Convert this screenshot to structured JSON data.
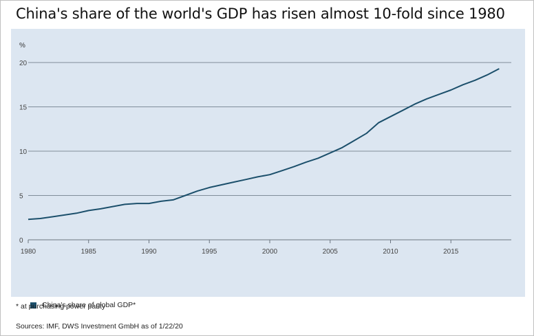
{
  "title": "China's share of the world's GDP has risen almost 10-fold since 1980",
  "footnote": "* at purchasing power parity",
  "sources": "Sources: IMF, DWS Investment GmbH as of 1/22/20",
  "colors": {
    "line": "#1b4f6b",
    "panel": "#dce6f1",
    "grid": "#7f8c99"
  },
  "chart_data": {
    "type": "line",
    "title": "China's share of the world's GDP has risen almost 10-fold since 1980",
    "ylabel": "%",
    "xlabel": "",
    "ylim": [
      0,
      20
    ],
    "yticks": [
      0,
      5,
      10,
      15,
      20
    ],
    "xlim": [
      1980,
      2020
    ],
    "xticks": [
      1980,
      1985,
      1990,
      1995,
      2000,
      2005,
      2010,
      2015
    ],
    "grid": true,
    "legend_position": "bottom-left",
    "series": [
      {
        "name": "China's share of global GDP*",
        "x": [
          1980,
          1981,
          1982,
          1983,
          1984,
          1985,
          1986,
          1987,
          1988,
          1989,
          1990,
          1991,
          1992,
          1993,
          1994,
          1995,
          1996,
          1997,
          1998,
          1999,
          2000,
          2001,
          2002,
          2003,
          2004,
          2005,
          2006,
          2007,
          2008,
          2009,
          2010,
          2011,
          2012,
          2013,
          2014,
          2015,
          2016,
          2017,
          2018,
          2019
        ],
        "values": [
          2.3,
          2.4,
          2.6,
          2.8,
          3.0,
          3.3,
          3.5,
          3.75,
          4.0,
          4.1,
          4.1,
          4.35,
          4.5,
          5.0,
          5.5,
          5.9,
          6.2,
          6.5,
          6.8,
          7.1,
          7.35,
          7.8,
          8.25,
          8.75,
          9.2,
          9.8,
          10.4,
          11.2,
          12.0,
          13.2,
          13.9,
          14.6,
          15.3,
          15.9,
          16.4,
          16.9,
          17.5,
          18.0,
          18.6,
          19.3
        ]
      }
    ]
  }
}
